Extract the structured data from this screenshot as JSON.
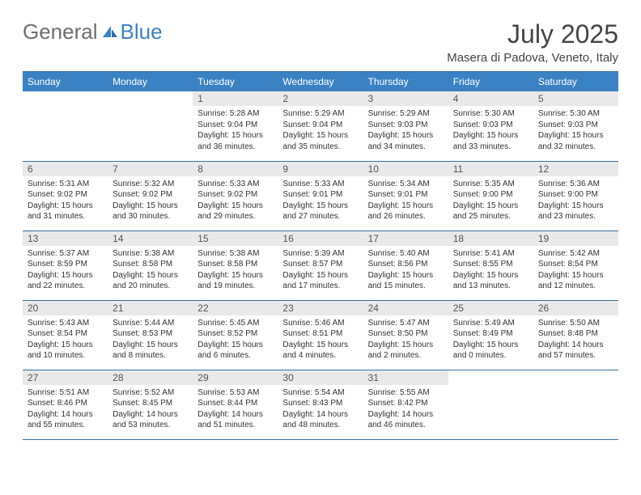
{
  "brand": {
    "word1": "General",
    "word2": "Blue"
  },
  "header": {
    "month_title": "July 2025",
    "location": "Masera di Padova, Veneto, Italy"
  },
  "colors": {
    "header_bg": "#3b82c4",
    "header_text": "#ffffff",
    "rule": "#3b6fa0",
    "daynum_bg": "#e9e9e9",
    "body_text": "#333333",
    "logo_gray": "#6e6e6e",
    "logo_blue": "#3b82c4"
  },
  "weekdays": [
    "Sunday",
    "Monday",
    "Tuesday",
    "Wednesday",
    "Thursday",
    "Friday",
    "Saturday"
  ],
  "weeks": [
    [
      null,
      null,
      {
        "n": "1",
        "sr": "5:28 AM",
        "ss": "9:04 PM",
        "dl": "15 hours and 36 minutes."
      },
      {
        "n": "2",
        "sr": "5:29 AM",
        "ss": "9:04 PM",
        "dl": "15 hours and 35 minutes."
      },
      {
        "n": "3",
        "sr": "5:29 AM",
        "ss": "9:03 PM",
        "dl": "15 hours and 34 minutes."
      },
      {
        "n": "4",
        "sr": "5:30 AM",
        "ss": "9:03 PM",
        "dl": "15 hours and 33 minutes."
      },
      {
        "n": "5",
        "sr": "5:30 AM",
        "ss": "9:03 PM",
        "dl": "15 hours and 32 minutes."
      }
    ],
    [
      {
        "n": "6",
        "sr": "5:31 AM",
        "ss": "9:02 PM",
        "dl": "15 hours and 31 minutes."
      },
      {
        "n": "7",
        "sr": "5:32 AM",
        "ss": "9:02 PM",
        "dl": "15 hours and 30 minutes."
      },
      {
        "n": "8",
        "sr": "5:33 AM",
        "ss": "9:02 PM",
        "dl": "15 hours and 29 minutes."
      },
      {
        "n": "9",
        "sr": "5:33 AM",
        "ss": "9:01 PM",
        "dl": "15 hours and 27 minutes."
      },
      {
        "n": "10",
        "sr": "5:34 AM",
        "ss": "9:01 PM",
        "dl": "15 hours and 26 minutes."
      },
      {
        "n": "11",
        "sr": "5:35 AM",
        "ss": "9:00 PM",
        "dl": "15 hours and 25 minutes."
      },
      {
        "n": "12",
        "sr": "5:36 AM",
        "ss": "9:00 PM",
        "dl": "15 hours and 23 minutes."
      }
    ],
    [
      {
        "n": "13",
        "sr": "5:37 AM",
        "ss": "8:59 PM",
        "dl": "15 hours and 22 minutes."
      },
      {
        "n": "14",
        "sr": "5:38 AM",
        "ss": "8:58 PM",
        "dl": "15 hours and 20 minutes."
      },
      {
        "n": "15",
        "sr": "5:38 AM",
        "ss": "8:58 PM",
        "dl": "15 hours and 19 minutes."
      },
      {
        "n": "16",
        "sr": "5:39 AM",
        "ss": "8:57 PM",
        "dl": "15 hours and 17 minutes."
      },
      {
        "n": "17",
        "sr": "5:40 AM",
        "ss": "8:56 PM",
        "dl": "15 hours and 15 minutes."
      },
      {
        "n": "18",
        "sr": "5:41 AM",
        "ss": "8:55 PM",
        "dl": "15 hours and 13 minutes."
      },
      {
        "n": "19",
        "sr": "5:42 AM",
        "ss": "8:54 PM",
        "dl": "15 hours and 12 minutes."
      }
    ],
    [
      {
        "n": "20",
        "sr": "5:43 AM",
        "ss": "8:54 PM",
        "dl": "15 hours and 10 minutes."
      },
      {
        "n": "21",
        "sr": "5:44 AM",
        "ss": "8:53 PM",
        "dl": "15 hours and 8 minutes."
      },
      {
        "n": "22",
        "sr": "5:45 AM",
        "ss": "8:52 PM",
        "dl": "15 hours and 6 minutes."
      },
      {
        "n": "23",
        "sr": "5:46 AM",
        "ss": "8:51 PM",
        "dl": "15 hours and 4 minutes."
      },
      {
        "n": "24",
        "sr": "5:47 AM",
        "ss": "8:50 PM",
        "dl": "15 hours and 2 minutes."
      },
      {
        "n": "25",
        "sr": "5:49 AM",
        "ss": "8:49 PM",
        "dl": "15 hours and 0 minutes."
      },
      {
        "n": "26",
        "sr": "5:50 AM",
        "ss": "8:48 PM",
        "dl": "14 hours and 57 minutes."
      }
    ],
    [
      {
        "n": "27",
        "sr": "5:51 AM",
        "ss": "8:46 PM",
        "dl": "14 hours and 55 minutes."
      },
      {
        "n": "28",
        "sr": "5:52 AM",
        "ss": "8:45 PM",
        "dl": "14 hours and 53 minutes."
      },
      {
        "n": "29",
        "sr": "5:53 AM",
        "ss": "8:44 PM",
        "dl": "14 hours and 51 minutes."
      },
      {
        "n": "30",
        "sr": "5:54 AM",
        "ss": "8:43 PM",
        "dl": "14 hours and 48 minutes."
      },
      {
        "n": "31",
        "sr": "5:55 AM",
        "ss": "8:42 PM",
        "dl": "14 hours and 46 minutes."
      },
      null,
      null
    ]
  ],
  "labels": {
    "sunrise": "Sunrise: ",
    "sunset": "Sunset: ",
    "daylight": "Daylight: "
  }
}
